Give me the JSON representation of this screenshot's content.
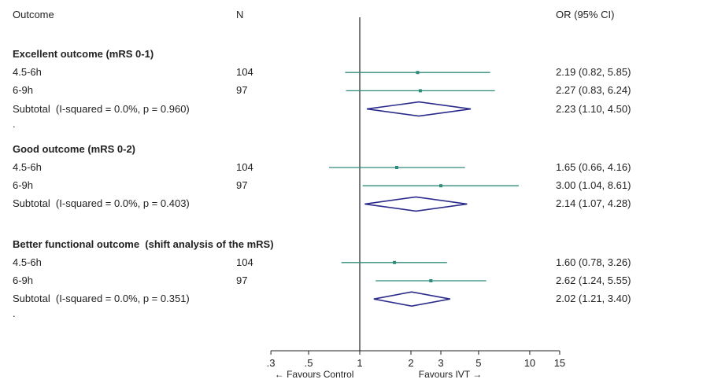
{
  "header": {
    "col_outcome": "Outcome",
    "col_n": "N",
    "col_or": "OR (95% CI)"
  },
  "chart_data": {
    "type": "forest",
    "scale": "log",
    "null_value": 1,
    "x_ticks": [
      ".3",
      ".5",
      "1",
      "2",
      "3",
      "5",
      "10",
      "15"
    ],
    "x_tick_values": [
      0.3,
      0.5,
      1,
      2,
      3,
      5,
      10,
      15
    ],
    "favours_left": "← Favours Control",
    "favours_right": "Favours IVT →",
    "colors": {
      "ci": "#2e8b7a",
      "diamond": "#2b2b8c",
      "axis": "#222222"
    },
    "groups": [
      {
        "title": "Excellent outcome (mRS 0-1)",
        "rows": [
          {
            "label": "4.5-6h",
            "n": "104",
            "or": 2.19,
            "lo": 0.82,
            "hi": 5.85,
            "text": "2.19 (0.82, 5.85)"
          },
          {
            "label": "6-9h",
            "n": "97",
            "or": 2.27,
            "lo": 0.83,
            "hi": 6.24,
            "text": "2.27 (0.83, 6.24)"
          }
        ],
        "subtotal": {
          "label": "Subtotal  (I-squared = 0.0%, p = 0.960)",
          "or": 2.23,
          "lo": 1.1,
          "hi": 4.5,
          "text": "2.23 (1.10, 4.50)"
        },
        "spacer": "."
      },
      {
        "title": "Good outcome (mRS 0-2)",
        "rows": [
          {
            "label": "4.5-6h",
            "n": "104",
            "or": 1.65,
            "lo": 0.66,
            "hi": 4.16,
            "text": "1.65 (0.66, 4.16)"
          },
          {
            "label": "6-9h",
            "n": "97",
            "or": 3.0,
            "lo": 1.04,
            "hi": 8.61,
            "text": "3.00 (1.04, 8.61)"
          }
        ],
        "subtotal": {
          "label": "Subtotal  (I-squared = 0.0%, p = 0.403)",
          "or": 2.14,
          "lo": 1.07,
          "hi": 4.28,
          "text": "2.14 (1.07, 4.28)"
        },
        "spacer": ""
      },
      {
        "title": "Better functional outcome  (shift analysis of the mRS)",
        "rows": [
          {
            "label": "4.5-6h",
            "n": "104",
            "or": 1.6,
            "lo": 0.78,
            "hi": 3.26,
            "text": "1.60 (0.78, 3.26)"
          },
          {
            "label": "6-9h",
            "n": "97",
            "or": 2.62,
            "lo": 1.24,
            "hi": 5.55,
            "text": "2.62 (1.24, 5.55)"
          }
        ],
        "subtotal": {
          "label": "Subtotal  (I-squared = 0.0%, p = 0.351)",
          "or": 2.02,
          "lo": 1.21,
          "hi": 3.4,
          "text": "2.02 (1.21, 3.40)"
        },
        "spacer": "."
      }
    ]
  }
}
